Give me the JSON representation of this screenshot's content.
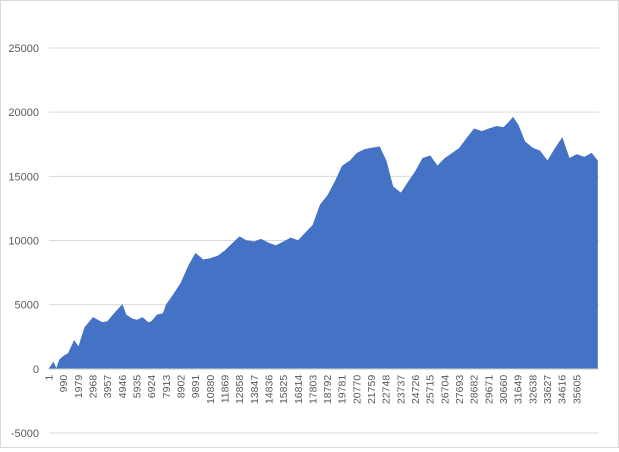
{
  "chart_data": {
    "type": "area",
    "title": "",
    "xlabel": "",
    "ylabel": "",
    "series_color": "#4472C4",
    "grid": true,
    "legend": "none",
    "ylim": [
      -5000,
      25000
    ],
    "xlim": [
      1,
      37100
    ],
    "y_ticks": [
      "-5000",
      "0",
      "5000",
      "10000",
      "15000",
      "20000",
      "25000"
    ],
    "x_tick_values": [
      1,
      990,
      1979,
      2968,
      3957,
      4946,
      5935,
      6924,
      7913,
      8902,
      9891,
      10880,
      11869,
      12858,
      13847,
      14836,
      15825,
      16814,
      17803,
      18792,
      19781,
      20770,
      21759,
      22748,
      23737,
      24726,
      25715,
      26704,
      27693,
      28682,
      29671,
      30660,
      31649,
      32638,
      33627,
      34616,
      35605
    ],
    "x_tick_labels": [
      "1",
      "990",
      "1979",
      "2968",
      "3957",
      "4946",
      "5935",
      "6924",
      "7913",
      "8902",
      "9891",
      "10880",
      "11869",
      "12858",
      "13847",
      "14836",
      "15825",
      "16814",
      "17803",
      "18792",
      "19781",
      "20770",
      "21759",
      "22748",
      "23737",
      "24726",
      "25715",
      "26704",
      "27693",
      "28682",
      "29671",
      "30660",
      "31649",
      "32638",
      "33627",
      "34616",
      "35605"
    ],
    "x": [
      1,
      300,
      500,
      700,
      990,
      1300,
      1700,
      2000,
      2400,
      2968,
      3300,
      3600,
      3957,
      4400,
      4946,
      5200,
      5600,
      5935,
      6300,
      6700,
      6924,
      7300,
      7700,
      7913,
      8400,
      8902,
      9400,
      9891,
      10400,
      10880,
      11400,
      11869,
      12400,
      12858,
      13300,
      13847,
      14300,
      14836,
      15300,
      15825,
      16300,
      16814,
      17300,
      17803,
      18300,
      18792,
      19300,
      19781,
      20300,
      20770,
      21300,
      21759,
      22300,
      22748,
      23200,
      23737,
      24200,
      24726,
      25200,
      25715,
      26200,
      26704,
      27200,
      27693,
      28200,
      28682,
      29200,
      29671,
      30200,
      30660,
      31000,
      31300,
      31649,
      32100,
      32638,
      33100,
      33627,
      34100,
      34616,
      35100,
      35605,
      36100,
      36600,
      37000
    ],
    "y": [
      0,
      500,
      0,
      700,
      1000,
      1200,
      2200,
      1700,
      3200,
      4000,
      3800,
      3600,
      3700,
      4300,
      5000,
      4200,
      3900,
      3800,
      4000,
      3600,
      3700,
      4200,
      4300,
      5000,
      5800,
      6700,
      8000,
      9000,
      8500,
      8600,
      8800,
      9200,
      9800,
      10300,
      10000,
      9900,
      10100,
      9800,
      9600,
      9900,
      10200,
      10000,
      10600,
      11200,
      12800,
      13500,
      14600,
      15800,
      16200,
      16800,
      17100,
      17200,
      17300,
      16200,
      14200,
      13700,
      14500,
      15400,
      16400,
      16600,
      15800,
      16400,
      16800,
      17200,
      18000,
      18700,
      18500,
      18700,
      18900,
      18800,
      19200,
      19600,
      19000,
      17700,
      17200,
      17000,
      16200,
      17100,
      18000,
      16400,
      16700,
      16500,
      16800,
      16200
    ]
  }
}
